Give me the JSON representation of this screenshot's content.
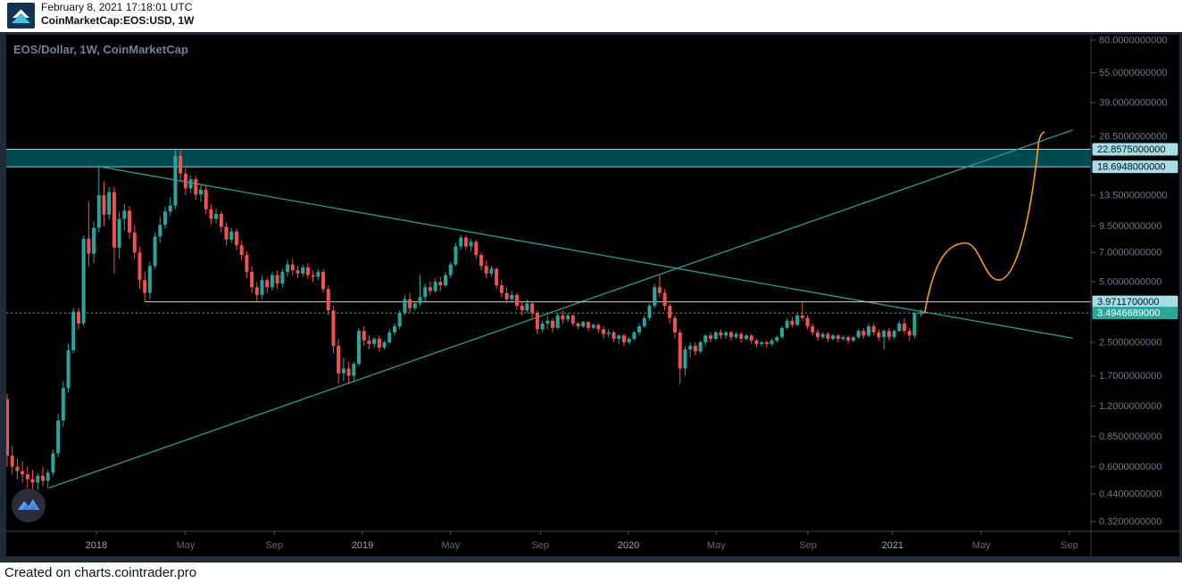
{
  "header": {
    "timestamp": "February 8, 2021 17:18:01 UTC",
    "symbol": "CoinMarketCap:EOS:USD, 1W"
  },
  "chart": {
    "title": "EOS/Dollar, 1W, CoinMarketCap"
  },
  "footer": {
    "text": "Created on charts.cointrader.pro"
  },
  "chart_data": {
    "type": "candlestick",
    "symbol": "EOS/Dollar",
    "timeframe": "1W",
    "source": "CoinMarketCap",
    "scale": "log",
    "grid": false,
    "ylim": [
      0.286,
      85.0
    ],
    "y_ticks": [
      80,
      55,
      39,
      26.5,
      13.5,
      9.5,
      7,
      5,
      2.5,
      1.7,
      1.2,
      0.85,
      0.6,
      0.44,
      0.32
    ],
    "y_tick_decimals": 10,
    "x_ticks": [
      {
        "label": "2018",
        "week": 17.5,
        "year": true
      },
      {
        "label": "May",
        "week": 35.0
      },
      {
        "label": "Sep",
        "week": 52.4
      },
      {
        "label": "2019",
        "week": 69.7,
        "year": true
      },
      {
        "label": "May",
        "week": 87.0
      },
      {
        "label": "Sep",
        "week": 104.6
      },
      {
        "label": "2020",
        "week": 121.9,
        "year": true
      },
      {
        "label": "May",
        "week": 139.1
      },
      {
        "label": "Sep",
        "week": 157.1
      },
      {
        "label": "2021",
        "week": 173.7,
        "year": true
      },
      {
        "label": "May",
        "week": 191.1
      },
      {
        "label": "Sep",
        "week": 208.4
      }
    ],
    "price_labels": [
      {
        "text": "22.8575000000",
        "price": 22.8575,
        "style": "zone"
      },
      {
        "text": "18.6948000000",
        "price": 18.6948,
        "style": "zone"
      },
      {
        "text": "3.9711700000",
        "price": 3.97117,
        "style": "zone"
      },
      {
        "text": "3.4946689000",
        "price": 3.4946689,
        "style": "last"
      }
    ],
    "last_price": 3.4946689,
    "drawings": {
      "supply_zone": {
        "top": 22.8575,
        "bottom": 18.6948
      },
      "descending_trendline": {
        "points": [
          [
            18.3,
            18.69
          ],
          [
            209.0,
            2.62
          ]
        ]
      },
      "ascending_trendline": {
        "points": [
          [
            8.2,
            0.47
          ],
          [
            209.0,
            28.5
          ]
        ]
      },
      "horizontal_ray": {
        "price": 3.97117,
        "start_week": 27.0
      },
      "last_price_line": {
        "price": 3.4946689
      },
      "projection_curve": {
        "anchors": [
          [
            180.0,
            3.5
          ],
          [
            188.0,
            7.8
          ],
          [
            194.5,
            5.1
          ],
          [
            202.3,
            24.2
          ]
        ]
      },
      "last_price_marker": {
        "price": 3.4946689,
        "week": 179.3
      }
    },
    "colors": {
      "up": "#26a69a",
      "down": "#ef5350",
      "trendline": "#2a9d8f",
      "zone_fill": "rgba(0,137,147,0.55)",
      "zone_edge": "#7fd8e2",
      "ray": "#cdd6dd",
      "last_line": "#4db6ac",
      "projection": "#f49d1d",
      "marker": "#26a69a",
      "axis_text": "#6e7a87",
      "axis_month": "#5d6873",
      "axis_year": "#9aa4ae",
      "label_zone_bg": "#a8dde8",
      "label_zone_fg": "#0c1013",
      "label_last_bg": "#2aa79a",
      "label_last_fg": "#ffffff",
      "separator": "#39424d",
      "tick": "#4a5563",
      "background": "#000000",
      "frame": "#202b38"
    },
    "candles": [
      [
        1.3,
        1.38,
        0.6,
        0.68
      ],
      [
        0.68,
        0.76,
        0.55,
        0.6
      ],
      [
        0.6,
        0.66,
        0.52,
        0.57
      ],
      [
        0.57,
        0.64,
        0.5,
        0.55
      ],
      [
        0.55,
        0.6,
        0.47,
        0.52
      ],
      [
        0.52,
        0.58,
        0.44,
        0.5
      ],
      [
        0.5,
        0.56,
        0.46,
        0.54
      ],
      [
        0.54,
        0.6,
        0.48,
        0.51
      ],
      [
        0.51,
        0.58,
        0.47,
        0.56
      ],
      [
        0.56,
        0.73,
        0.54,
        0.7
      ],
      [
        0.7,
        1.1,
        0.67,
        1.02
      ],
      [
        1.02,
        1.6,
        0.95,
        1.48
      ],
      [
        1.48,
        2.45,
        1.4,
        2.28
      ],
      [
        2.28,
        3.7,
        2.2,
        3.55
      ],
      [
        3.55,
        3.72,
        2.9,
        3.1
      ],
      [
        3.1,
        8.5,
        3.0,
        8.2
      ],
      [
        8.2,
        12.6,
        6.0,
        6.9
      ],
      [
        6.9,
        10.0,
        6.2,
        9.3
      ],
      [
        9.3,
        18.7,
        8.8,
        13.5
      ],
      [
        13.5,
        15.8,
        9.5,
        10.8
      ],
      [
        10.8,
        14.8,
        10.2,
        14.0
      ],
      [
        14.0,
        14.8,
        5.5,
        7.4
      ],
      [
        7.4,
        11.2,
        6.5,
        10.3
      ],
      [
        10.3,
        12.2,
        9.0,
        11.3
      ],
      [
        11.3,
        11.9,
        8.2,
        8.8
      ],
      [
        8.8,
        9.6,
        6.5,
        7.0
      ],
      [
        7.0,
        7.5,
        4.6,
        5.1
      ],
      [
        5.1,
        5.6,
        3.97,
        4.4
      ],
      [
        4.4,
        6.3,
        4.1,
        6.0
      ],
      [
        6.0,
        8.8,
        5.8,
        8.4
      ],
      [
        8.4,
        10.5,
        7.8,
        9.6
      ],
      [
        9.6,
        11.8,
        9.2,
        11.2
      ],
      [
        11.2,
        13.2,
        10.6,
        12.0
      ],
      [
        12.0,
        22.86,
        11.5,
        21.2
      ],
      [
        21.2,
        22.5,
        16.0,
        17.3
      ],
      [
        17.3,
        18.5,
        13.5,
        14.6
      ],
      [
        14.6,
        17.0,
        13.8,
        16.2
      ],
      [
        16.2,
        16.8,
        12.8,
        13.6
      ],
      [
        13.6,
        15.2,
        12.5,
        14.4
      ],
      [
        14.4,
        15.0,
        10.8,
        11.5
      ],
      [
        11.5,
        12.2,
        9.6,
        10.3
      ],
      [
        10.3,
        11.6,
        9.8,
        10.9
      ],
      [
        10.9,
        11.2,
        8.8,
        9.4
      ],
      [
        9.4,
        9.9,
        7.6,
        8.1
      ],
      [
        8.1,
        9.3,
        7.8,
        8.9
      ],
      [
        8.9,
        9.2,
        7.2,
        7.6
      ],
      [
        7.6,
        8.0,
        6.4,
        6.8
      ],
      [
        6.8,
        7.1,
        5.2,
        5.6
      ],
      [
        5.6,
        6.0,
        4.4,
        4.7
      ],
      [
        4.7,
        5.0,
        4.0,
        4.3
      ],
      [
        4.3,
        5.4,
        4.1,
        5.1
      ],
      [
        5.1,
        5.3,
        4.4,
        4.7
      ],
      [
        4.7,
        5.6,
        4.5,
        5.4
      ],
      [
        5.4,
        5.7,
        4.6,
        4.9
      ],
      [
        4.9,
        5.8,
        4.7,
        5.6
      ],
      [
        5.6,
        6.4,
        5.3,
        6.1
      ],
      [
        6.1,
        6.5,
        5.4,
        5.7
      ],
      [
        5.7,
        6.0,
        5.2,
        5.5
      ],
      [
        5.5,
        6.1,
        5.3,
        5.9
      ],
      [
        5.9,
        6.2,
        5.2,
        5.4
      ],
      [
        5.4,
        5.7,
        5.0,
        5.3
      ],
      [
        5.3,
        5.8,
        5.1,
        5.6
      ],
      [
        5.6,
        5.8,
        4.4,
        4.6
      ],
      [
        4.6,
        4.8,
        3.4,
        3.6
      ],
      [
        3.6,
        3.8,
        2.2,
        2.4
      ],
      [
        2.4,
        2.6,
        1.55,
        1.75
      ],
      [
        1.75,
        2.1,
        1.6,
        1.85
      ],
      [
        1.85,
        2.0,
        1.55,
        1.7
      ],
      [
        1.7,
        2.0,
        1.6,
        1.95
      ],
      [
        1.95,
        2.95,
        1.9,
        2.85
      ],
      [
        2.85,
        3.0,
        2.4,
        2.55
      ],
      [
        2.55,
        2.7,
        2.3,
        2.45
      ],
      [
        2.45,
        2.65,
        2.35,
        2.6
      ],
      [
        2.6,
        2.7,
        2.25,
        2.35
      ],
      [
        2.35,
        2.55,
        2.3,
        2.5
      ],
      [
        2.5,
        2.9,
        2.45,
        2.8
      ],
      [
        2.8,
        3.1,
        2.7,
        3.0
      ],
      [
        3.0,
        3.6,
        2.9,
        3.5
      ],
      [
        3.5,
        4.3,
        3.4,
        4.1
      ],
      [
        4.1,
        4.4,
        3.5,
        3.7
      ],
      [
        3.7,
        4.0,
        3.6,
        3.9
      ],
      [
        3.9,
        5.4,
        3.8,
        4.2
      ],
      [
        4.2,
        4.9,
        4.0,
        4.7
      ],
      [
        4.7,
        5.0,
        4.3,
        4.5
      ],
      [
        4.5,
        5.2,
        4.4,
        5.0
      ],
      [
        5.0,
        5.3,
        4.5,
        4.8
      ],
      [
        4.8,
        5.6,
        4.7,
        5.4
      ],
      [
        5.4,
        6.3,
        5.2,
        6.1
      ],
      [
        6.1,
        7.8,
        6.0,
        7.5
      ],
      [
        7.5,
        8.56,
        7.2,
        8.3
      ],
      [
        8.3,
        8.5,
        7.2,
        7.5
      ],
      [
        7.5,
        8.2,
        7.1,
        7.9
      ],
      [
        7.9,
        8.1,
        6.5,
        6.8
      ],
      [
        6.8,
        7.0,
        5.7,
        6.0
      ],
      [
        6.0,
        6.4,
        5.2,
        5.5
      ],
      [
        5.5,
        6.0,
        5.3,
        5.8
      ],
      [
        5.8,
        5.9,
        4.6,
        4.8
      ],
      [
        4.8,
        5.1,
        4.2,
        4.4
      ],
      [
        4.4,
        4.7,
        3.9,
        4.1
      ],
      [
        4.1,
        4.5,
        4.0,
        4.3
      ],
      [
        4.3,
        4.4,
        3.6,
        3.8
      ],
      [
        3.8,
        4.0,
        3.4,
        3.6
      ],
      [
        3.6,
        4.1,
        3.5,
        3.9
      ],
      [
        3.9,
        4.0,
        3.3,
        3.5
      ],
      [
        3.5,
        3.6,
        2.75,
        2.9
      ],
      [
        2.9,
        3.2,
        2.8,
        3.1
      ],
      [
        3.1,
        3.4,
        2.9,
        3.2
      ],
      [
        3.2,
        3.3,
        2.8,
        2.95
      ],
      [
        2.95,
        3.5,
        2.9,
        3.4
      ],
      [
        3.4,
        3.6,
        3.1,
        3.25
      ],
      [
        3.25,
        3.5,
        3.15,
        3.4
      ],
      [
        3.4,
        3.45,
        3.0,
        3.1
      ],
      [
        3.1,
        3.15,
        2.9,
        3.0
      ],
      [
        3.0,
        3.2,
        2.95,
        3.15
      ],
      [
        3.15,
        3.2,
        2.85,
        2.95
      ],
      [
        2.95,
        3.1,
        2.9,
        3.05
      ],
      [
        3.05,
        3.1,
        2.8,
        2.9
      ],
      [
        2.9,
        3.0,
        2.6,
        2.75
      ],
      [
        2.75,
        2.9,
        2.65,
        2.8
      ],
      [
        2.8,
        2.85,
        2.5,
        2.6
      ],
      [
        2.6,
        2.75,
        2.45,
        2.7
      ],
      [
        2.7,
        2.75,
        2.4,
        2.5
      ],
      [
        2.5,
        2.65,
        2.45,
        2.6
      ],
      [
        2.6,
        2.85,
        2.55,
        2.8
      ],
      [
        2.8,
        3.1,
        2.7,
        3.0
      ],
      [
        3.0,
        3.4,
        2.95,
        3.3
      ],
      [
        3.3,
        3.9,
        3.2,
        3.8
      ],
      [
        3.8,
        4.9,
        3.7,
        4.7
      ],
      [
        4.7,
        5.4,
        4.2,
        4.4
      ],
      [
        4.4,
        4.6,
        3.6,
        3.8
      ],
      [
        3.8,
        3.9,
        3.1,
        3.3
      ],
      [
        3.3,
        3.4,
        2.6,
        2.8
      ],
      [
        2.8,
        2.9,
        1.55,
        1.85
      ],
      [
        1.85,
        2.4,
        1.7,
        2.3
      ],
      [
        2.3,
        2.5,
        2.1,
        2.4
      ],
      [
        2.4,
        2.5,
        2.15,
        2.25
      ],
      [
        2.25,
        2.55,
        2.2,
        2.5
      ],
      [
        2.5,
        2.75,
        2.4,
        2.7
      ],
      [
        2.7,
        2.8,
        2.5,
        2.6
      ],
      [
        2.6,
        2.85,
        2.55,
        2.8
      ],
      [
        2.8,
        2.9,
        2.6,
        2.7
      ],
      [
        2.7,
        2.85,
        2.6,
        2.8
      ],
      [
        2.8,
        2.85,
        2.55,
        2.65
      ],
      [
        2.65,
        2.8,
        2.6,
        2.75
      ],
      [
        2.75,
        2.8,
        2.5,
        2.6
      ],
      [
        2.6,
        2.75,
        2.55,
        2.7
      ],
      [
        2.7,
        2.75,
        2.45,
        2.55
      ],
      [
        2.55,
        2.6,
        2.35,
        2.45
      ],
      [
        2.45,
        2.55,
        2.4,
        2.5
      ],
      [
        2.5,
        2.55,
        2.35,
        2.45
      ],
      [
        2.45,
        2.6,
        2.4,
        2.55
      ],
      [
        2.55,
        2.7,
        2.5,
        2.65
      ],
      [
        2.65,
        3.0,
        2.6,
        2.95
      ],
      [
        2.95,
        3.3,
        2.9,
        3.2
      ],
      [
        3.2,
        3.35,
        2.95,
        3.05
      ],
      [
        3.05,
        3.5,
        3.0,
        3.4
      ],
      [
        3.4,
        3.95,
        3.2,
        3.3
      ],
      [
        3.3,
        3.4,
        2.9,
        3.0
      ],
      [
        3.0,
        3.1,
        2.7,
        2.8
      ],
      [
        2.8,
        2.9,
        2.55,
        2.65
      ],
      [
        2.65,
        2.8,
        2.6,
        2.75
      ],
      [
        2.75,
        2.8,
        2.5,
        2.6
      ],
      [
        2.6,
        2.75,
        2.55,
        2.7
      ],
      [
        2.7,
        2.75,
        2.5,
        2.6
      ],
      [
        2.6,
        2.7,
        2.55,
        2.65
      ],
      [
        2.65,
        2.7,
        2.45,
        2.55
      ],
      [
        2.55,
        2.7,
        2.5,
        2.65
      ],
      [
        2.65,
        2.9,
        2.6,
        2.85
      ],
      [
        2.85,
        2.95,
        2.6,
        2.7
      ],
      [
        2.7,
        3.1,
        2.65,
        3.0
      ],
      [
        3.0,
        3.1,
        2.7,
        2.8
      ],
      [
        2.8,
        2.9,
        2.55,
        2.65
      ],
      [
        2.65,
        2.9,
        2.3,
        2.85
      ],
      [
        2.85,
        2.95,
        2.55,
        2.65
      ],
      [
        2.65,
        2.9,
        2.6,
        2.85
      ],
      [
        2.85,
        3.2,
        2.8,
        3.1
      ],
      [
        3.1,
        3.3,
        2.75,
        2.85
      ],
      [
        2.85,
        2.95,
        2.55,
        2.7
      ],
      [
        2.7,
        3.55,
        2.6,
        3.4946689
      ]
    ]
  }
}
